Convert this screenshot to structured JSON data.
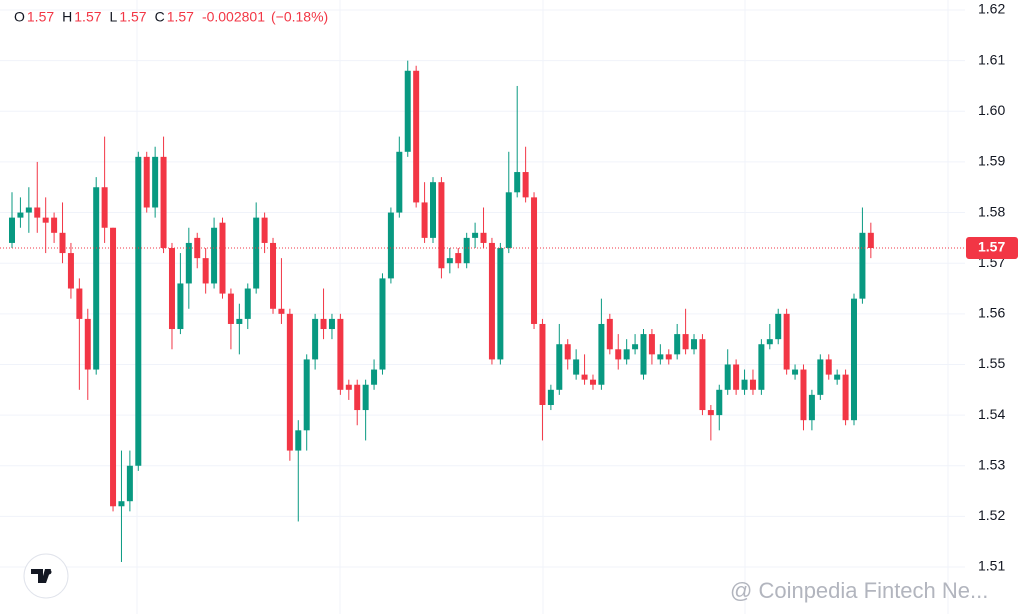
{
  "chart_data": {
    "type": "candlestick",
    "header": {
      "items": [
        {
          "label": "O",
          "value": "1.57"
        },
        {
          "label": "H",
          "value": "1.57"
        },
        {
          "label": "L",
          "value": "1.57"
        },
        {
          "label": "C",
          "value": "1.57"
        }
      ],
      "change": "-0.002801",
      "change_pct": "(−0.18%)"
    },
    "watermark": "@ Coinpedia Fintech Ne...",
    "up_color": "#089981",
    "down_color": "#f23645",
    "open": [
      1.574,
      1.579,
      1.58,
      1.581,
      1.579,
      1.579,
      1.576,
      1.572,
      1.565,
      1.559,
      1.549,
      1.585,
      1.577,
      1.522,
      1.523,
      1.53,
      1.591,
      1.581,
      1.591,
      1.573,
      1.557,
      1.566,
      1.575,
      1.571,
      1.566,
      1.578,
      1.564,
      1.558,
      1.559,
      1.565,
      1.579,
      1.574,
      1.561,
      1.56,
      1.533,
      1.537,
      1.551,
      1.559,
      1.557,
      1.559,
      1.546,
      1.546,
      1.541,
      1.546,
      1.549,
      1.567,
      1.58,
      1.592,
      1.608,
      1.582,
      1.575,
      1.586,
      1.57,
      1.572,
      1.57,
      1.575,
      1.576,
      1.574,
      1.551,
      1.573,
      1.584,
      1.588,
      1.583,
      1.558,
      1.542,
      1.545,
      1.554,
      1.548,
      1.548,
      1.547,
      1.546,
      1.559,
      1.553,
      1.551,
      1.553,
      1.548,
      1.556,
      1.551,
      1.552,
      1.552,
      1.556,
      1.553,
      1.555,
      1.541,
      1.54,
      1.545,
      1.55,
      1.545,
      1.547,
      1.545,
      1.554,
      1.555,
      1.56,
      1.548,
      1.549,
      1.539,
      1.544,
      1.551,
      1.547,
      1.548,
      1.539,
      1.563,
      1.576
    ],
    "high": [
      1.584,
      1.583,
      1.585,
      1.59,
      1.583,
      1.58,
      1.582,
      1.574,
      1.567,
      1.561,
      1.587,
      1.595,
      1.577,
      1.533,
      1.533,
      1.592,
      1.592,
      1.593,
      1.595,
      1.574,
      1.572,
      1.577,
      1.576,
      1.573,
      1.579,
      1.579,
      1.565,
      1.562,
      1.566,
      1.582,
      1.58,
      1.575,
      1.571,
      1.561,
      1.539,
      1.552,
      1.56,
      1.565,
      1.56,
      1.56,
      1.547,
      1.547,
      1.547,
      1.551,
      1.568,
      1.581,
      1.595,
      1.61,
      1.609,
      1.586,
      1.587,
      1.587,
      1.573,
      1.573,
      1.576,
      1.578,
      1.581,
      1.575,
      1.574,
      1.592,
      1.605,
      1.593,
      1.584,
      1.559,
      1.546,
      1.558,
      1.555,
      1.553,
      1.552,
      1.548,
      1.563,
      1.56,
      1.556,
      1.555,
      1.556,
      1.557,
      1.557,
      1.554,
      1.553,
      1.558,
      1.561,
      1.556,
      1.556,
      1.542,
      1.546,
      1.553,
      1.551,
      1.549,
      1.549,
      1.555,
      1.558,
      1.561,
      1.561,
      1.55,
      1.55,
      1.545,
      1.552,
      1.552,
      1.549,
      1.549,
      1.564,
      1.581,
      1.578
    ],
    "low": [
      1.573,
      1.577,
      1.576,
      1.576,
      1.572,
      1.574,
      1.57,
      1.563,
      1.545,
      1.543,
      1.548,
      1.574,
      1.521,
      1.511,
      1.521,
      1.529,
      1.58,
      1.579,
      1.572,
      1.553,
      1.556,
      1.561,
      1.569,
      1.564,
      1.565,
      1.563,
      1.553,
      1.552,
      1.557,
      1.564,
      1.572,
      1.56,
      1.558,
      1.531,
      1.519,
      1.533,
      1.549,
      1.555,
      1.555,
      1.544,
      1.543,
      1.538,
      1.535,
      1.545,
      1.548,
      1.566,
      1.579,
      1.591,
      1.581,
      1.574,
      1.574,
      1.567,
      1.568,
      1.569,
      1.569,
      1.573,
      1.573,
      1.55,
      1.55,
      1.572,
      1.583,
      1.582,
      1.557,
      1.535,
      1.541,
      1.544,
      1.549,
      1.547,
      1.546,
      1.545,
      1.545,
      1.552,
      1.549,
      1.55,
      1.552,
      1.547,
      1.55,
      1.55,
      1.55,
      1.551,
      1.552,
      1.552,
      1.54,
      1.535,
      1.537,
      1.544,
      1.544,
      1.544,
      1.544,
      1.544,
      1.553,
      1.554,
      1.548,
      1.547,
      1.537,
      1.537,
      1.543,
      1.547,
      1.546,
      1.538,
      1.538,
      1.562,
      1.571
    ],
    "close": [
      1.579,
      1.58,
      1.581,
      1.579,
      1.578,
      1.576,
      1.572,
      1.565,
      1.559,
      1.549,
      1.585,
      1.577,
      1.522,
      1.523,
      1.53,
      1.591,
      1.581,
      1.591,
      1.573,
      1.557,
      1.566,
      1.574,
      1.571,
      1.566,
      1.577,
      1.564,
      1.558,
      1.559,
      1.565,
      1.579,
      1.574,
      1.561,
      1.56,
      1.533,
      1.537,
      1.551,
      1.559,
      1.557,
      1.559,
      1.545,
      1.545,
      1.541,
      1.546,
      1.549,
      1.567,
      1.58,
      1.592,
      1.608,
      1.582,
      1.575,
      1.586,
      1.569,
      1.571,
      1.57,
      1.575,
      1.576,
      1.574,
      1.551,
      1.573,
      1.584,
      1.588,
      1.583,
      1.558,
      1.542,
      1.545,
      1.554,
      1.551,
      1.551,
      1.547,
      1.546,
      1.558,
      1.553,
      1.551,
      1.553,
      1.554,
      1.556,
      1.552,
      1.552,
      1.551,
      1.556,
      1.553,
      1.555,
      1.541,
      1.54,
      1.545,
      1.55,
      1.545,
      1.547,
      1.545,
      1.554,
      1.555,
      1.56,
      1.549,
      1.549,
      1.539,
      1.544,
      1.551,
      1.548,
      1.548,
      1.539,
      1.563,
      1.576,
      1.573
    ],
    "last_price": {
      "value": 1.573,
      "label": "1.57"
    },
    "ylim": [
      1.5,
      1.62
    ],
    "yticks": [
      1.51,
      1.52,
      1.53,
      1.54,
      1.55,
      1.56,
      1.57,
      1.58,
      1.59,
      {
        "value": 1.6,
        "label": "1.60"
      },
      1.61,
      1.62
    ],
    "grid": true
  }
}
